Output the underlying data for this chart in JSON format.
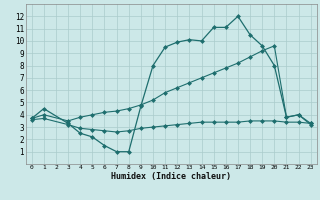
{
  "xlabel": "Humidex (Indice chaleur)",
  "bg_color": "#cce8e8",
  "grid_color": "#aacccc",
  "line_color": "#1e6e6e",
  "xlim": [
    -0.5,
    23.5
  ],
  "ylim": [
    0,
    13
  ],
  "xticks": [
    0,
    1,
    2,
    3,
    4,
    5,
    6,
    7,
    8,
    9,
    10,
    11,
    12,
    13,
    14,
    15,
    16,
    17,
    18,
    19,
    20,
    21,
    22,
    23
  ],
  "yticks": [
    1,
    2,
    3,
    4,
    5,
    6,
    7,
    8,
    9,
    10,
    11,
    12
  ],
  "line1_x": [
    0,
    1,
    3,
    4,
    5,
    6,
    7,
    8,
    9,
    10,
    11,
    12,
    13,
    14,
    15,
    16,
    17,
    18,
    19,
    20,
    21,
    22,
    23
  ],
  "line1_y": [
    3.7,
    4.5,
    3.3,
    2.5,
    2.2,
    1.5,
    1.0,
    1.0,
    4.7,
    8.0,
    9.5,
    9.9,
    10.1,
    10.0,
    11.1,
    11.1,
    12.0,
    10.5,
    9.6,
    8.0,
    3.8,
    4.0,
    3.2
  ],
  "line2_x": [
    0,
    1,
    3,
    4,
    5,
    6,
    7,
    8,
    9,
    10,
    11,
    12,
    13,
    14,
    15,
    16,
    17,
    18,
    19,
    20,
    21,
    22,
    23
  ],
  "line2_y": [
    3.6,
    3.7,
    3.2,
    2.9,
    2.8,
    2.7,
    2.6,
    2.7,
    2.9,
    3.0,
    3.1,
    3.2,
    3.3,
    3.4,
    3.4,
    3.4,
    3.4,
    3.5,
    3.5,
    3.5,
    3.4,
    3.4,
    3.3
  ],
  "line3_x": [
    0,
    1,
    3,
    4,
    5,
    6,
    7,
    8,
    9,
    10,
    11,
    12,
    13,
    14,
    15,
    16,
    17,
    18,
    19,
    20,
    21,
    22,
    23
  ],
  "line3_y": [
    3.7,
    4.0,
    3.5,
    3.8,
    4.0,
    4.2,
    4.3,
    4.5,
    4.8,
    5.2,
    5.8,
    6.2,
    6.6,
    7.0,
    7.4,
    7.8,
    8.2,
    8.7,
    9.2,
    9.6,
    3.8,
    4.0,
    3.3
  ]
}
